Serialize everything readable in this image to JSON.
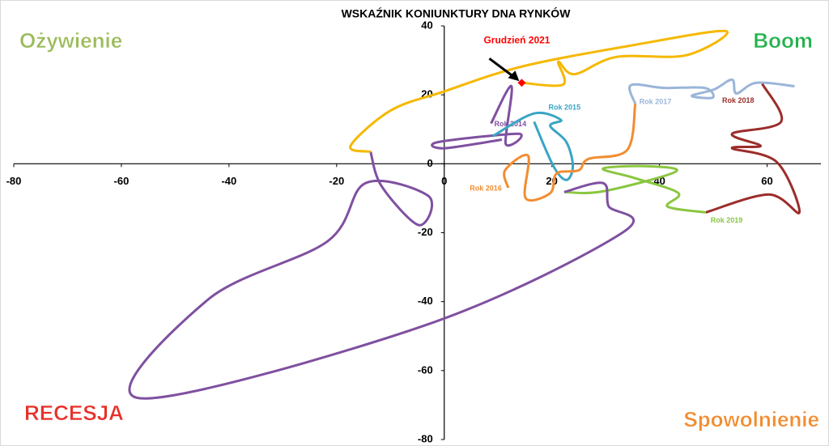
{
  "chart_data": {
    "type": "line",
    "title": "WSKAŹNIK KONIUNKTURY DNA RYNKÓW",
    "xlim": [
      -80,
      70
    ],
    "ylim": [
      -80,
      40
    ],
    "xticks": [
      -80,
      -60,
      -40,
      -20,
      0,
      20,
      40,
      60
    ],
    "yticks": [
      -80,
      -60,
      -40,
      -20,
      0,
      20,
      40
    ],
    "quadrant_labels": [
      {
        "text": "Ożywienie",
        "color": "#9bbb59",
        "corner": "top-left"
      },
      {
        "text": "Boom",
        "color": "#22b14c",
        "corner": "top-right"
      },
      {
        "text": "RECESJA",
        "color": "#e8302a",
        "corner": "bottom-left"
      },
      {
        "text": "Spowolnienie",
        "color": "#f28c30",
        "corner": "bottom-right"
      }
    ],
    "annotation": {
      "text": "Grudzień 2021",
      "x": 14.4,
      "y": 23.5,
      "color": "#ff0000"
    },
    "series": [
      {
        "name": "Rok 2014",
        "color": "#7f50a0",
        "x": [
          8.7,
          12.5,
          11.4,
          13.8,
          -1.1,
          0,
          10.7
        ],
        "values": [
          11.7,
          22.5,
          5.9,
          8.7,
          6.3,
          4.5,
          7
        ]
      },
      {
        "name": "Rok 2015",
        "color": "#3aa5c4",
        "x": [
          9,
          16.7,
          21.7,
          19.7,
          22.7,
          23.9,
          22.7,
          20.3,
          16.7
        ],
        "values": [
          8,
          14.6,
          12.7,
          11,
          6.3,
          -0.7,
          -4.7,
          -0.7,
          12.2
        ]
      },
      {
        "name": "Rok 2016",
        "color": "#f28c30",
        "x": [
          11.9,
          11.3,
          15.6,
          15.1,
          19.7,
          20.9,
          25,
          26.8,
          34,
          35.5
        ],
        "values": [
          -7,
          -1.9,
          2.3,
          -9.9,
          -8.5,
          -2.8,
          -1.9,
          1.4,
          4,
          17.4
        ]
      },
      {
        "name": "Rok 2017",
        "color": "#9ab5d9",
        "x": [
          35.5,
          34.7,
          40.9,
          48.4,
          49.9,
          46,
          50.2,
          53.5,
          54.3,
          58,
          65.1
        ],
        "values": [
          17.4,
          22.8,
          22,
          22,
          19.2,
          19.7,
          21.6,
          24.4,
          20.4,
          23.5,
          22.5
        ]
      },
      {
        "name": "Rok 2018",
        "color": "#9b2d2a",
        "x": [
          59.1,
          62.6,
          53.5,
          58.8,
          53.5,
          61.8,
          66,
          60.3,
          48.6
        ],
        "values": [
          23.2,
          12.2,
          8.7,
          5.2,
          4.5,
          0.5,
          -14.1,
          -8.9,
          -14.1
        ]
      },
      {
        "name": "Rok 2019",
        "color": "#8ac640",
        "x": [
          48.6,
          41.5,
          43.5,
          35.5,
          29.5,
          37.7,
          43,
          29.5,
          22.3
        ],
        "values": [
          -14.1,
          -12.4,
          -8.5,
          -4.2,
          -1.4,
          -0.7,
          -2.3,
          -8,
          -8.2
        ]
      },
      {
        "color": "#7f50a0",
        "x": [
          22.3,
          29.5,
          30.5,
          33.1,
          -3.8,
          -56.7,
          -43.9,
          -21.7,
          -14.6,
          -2.9,
          -4.7,
          -11.6,
          -13.7
        ],
        "values": [
          -8.2,
          -5.6,
          -12.2,
          -20,
          -47,
          -68,
          -39.4,
          -22.5,
          -5.6,
          -9.4,
          -17.8,
          -6.6,
          3.5
        ]
      },
      {
        "color": "#f5b800",
        "x": [
          -13.7,
          -17.4,
          -9.9,
          0,
          14.4,
          34.7,
          52.3,
          45,
          32,
          24.2,
          21.2,
          22.1,
          14.4
        ],
        "values": [
          3.5,
          5.2,
          15.5,
          21,
          28.2,
          34.3,
          38.5,
          31.5,
          31,
          26,
          29.6,
          23,
          23.5
        ]
      }
    ]
  }
}
